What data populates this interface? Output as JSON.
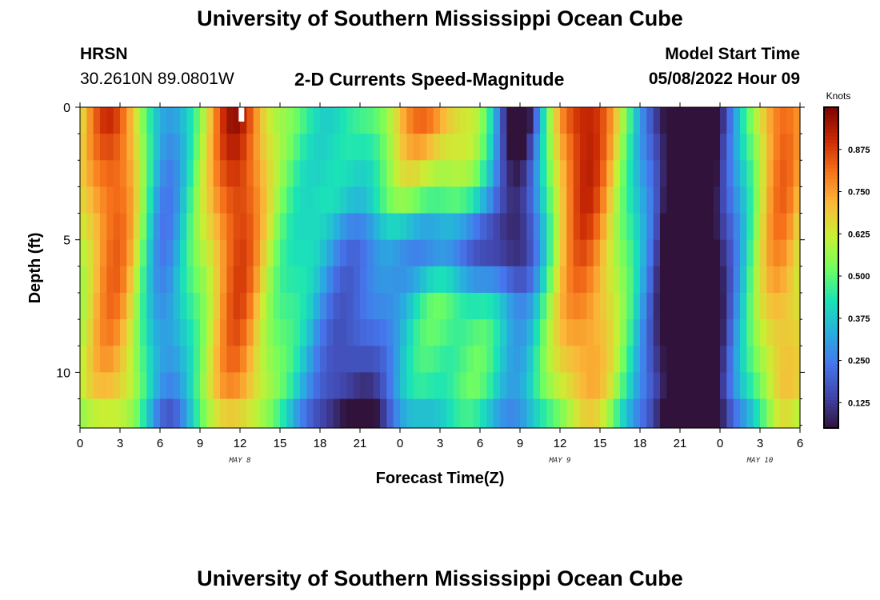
{
  "header": {
    "title": "University of Southern Mississippi Ocean Cube",
    "station_code": "HRSN",
    "station_coords": "30.2610N  89.0801W",
    "product_title": "2-D Currents Speed-Magnitude",
    "model_start_label": "Model Start Time",
    "model_start_value": "05/08/2022 Hour 09"
  },
  "footer": {
    "title": "University of Southern Mississippi Ocean Cube"
  },
  "chart_data": {
    "type": "heatmap",
    "title": "2-D Currents Speed-Magnitude",
    "xlabel": "Forecast Time(Z)",
    "ylabel": "Depth (ft)",
    "x_range": [
      0,
      54
    ],
    "y_range": [
      0,
      12.1
    ],
    "x_unit": "hours from May 8 00Z",
    "x_tick_values": [
      0,
      3,
      6,
      9,
      12,
      15,
      18,
      21,
      24,
      27,
      30,
      33,
      36,
      39,
      42,
      45,
      48,
      51,
      54
    ],
    "x_tick_labels": [
      "0",
      "3",
      "6",
      "9",
      "12",
      "15",
      "18",
      "21",
      "0",
      "3",
      "6",
      "9",
      "12",
      "15",
      "18",
      "21",
      "0",
      "3",
      "6"
    ],
    "date_labels": [
      {
        "text": "MAY 8",
        "x": 12
      },
      {
        "text": "MAY 9",
        "x": 36
      },
      {
        "text": "MAY 10",
        "x": 51
      }
    ],
    "y_tick_values": [
      0,
      5,
      10
    ],
    "y_tick_labels": [
      "0",
      "5",
      "10"
    ],
    "colorbar": {
      "title": "Knots",
      "min": 0.05,
      "max": 1.0,
      "tick_values": [
        0.125,
        0.25,
        0.375,
        0.5,
        0.625,
        0.75,
        0.875
      ],
      "tick_labels": [
        "0.125",
        "0.250",
        "0.375",
        "0.500",
        "0.625",
        "0.750",
        "0.875"
      ]
    },
    "depth_levels": [
      0,
      1,
      2,
      3,
      4,
      5,
      6,
      7,
      8,
      9,
      10,
      11
    ],
    "notes": "Speed grid approximated: strong surface/mid-depth maxima near 0-3Z, 9-14Z May 8, 17-28Z, 35-41Z May 9 and 51-54Z; minima near 20-22Z May 8 (deep), 33Z surface and 45-47Z May 9."
  }
}
